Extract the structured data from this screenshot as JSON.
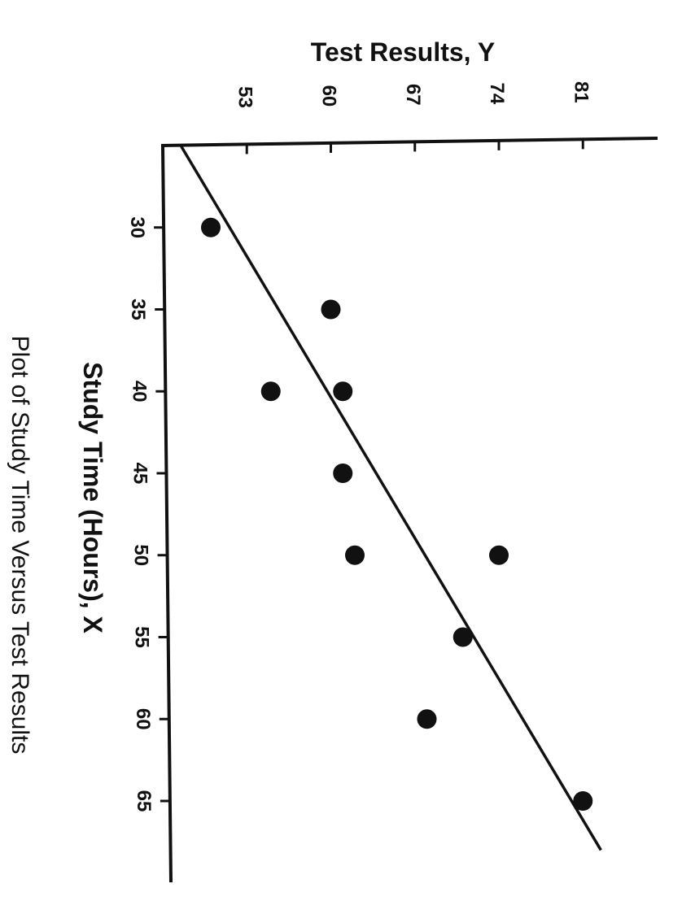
{
  "chart_data": {
    "type": "scatter",
    "caption": "Plot of Study Time Versus Test Results",
    "xlabel": "Study Time (Hours), X",
    "ylabel": "Test Results, Y",
    "x_ticks": [
      30,
      35,
      40,
      45,
      50,
      55,
      60,
      65
    ],
    "y_ticks": [
      53,
      60,
      67,
      74,
      81
    ],
    "xlim": [
      25,
      69
    ],
    "ylim": [
      46,
      85
    ],
    "grid": false,
    "legend": "none",
    "series": [
      {
        "x": [
          30,
          35,
          40,
          40,
          45,
          50,
          50,
          55,
          60,
          65
        ],
        "y": [
          50,
          60,
          55,
          61,
          61,
          62,
          74,
          71,
          68,
          81
        ]
      }
    ],
    "trend_line": {
      "x": [
        25,
        68
      ],
      "y": [
        47.5,
        82.5
      ]
    }
  }
}
